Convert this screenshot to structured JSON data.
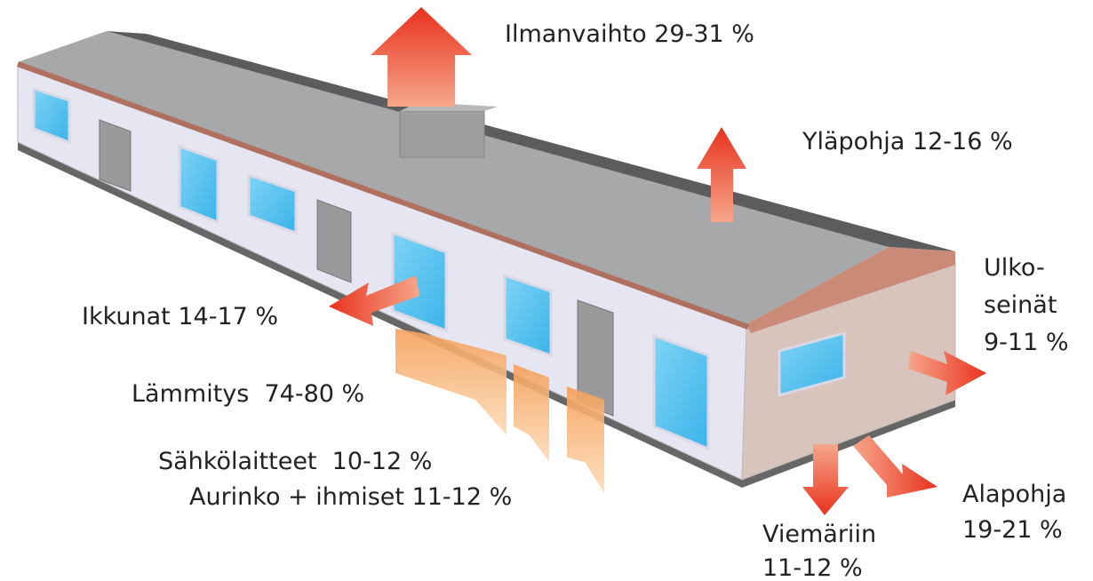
{
  "labels": {
    "ilmanvaihto": "Ilmanvaihto 29-31 %",
    "ylapohja": "Yläpohja 12-16 %",
    "ulkoseinat": [
      "Ulko-",
      "seinät",
      "9-11 %"
    ],
    "ikkunat": "Ikkunat 14-17 %",
    "lammitys": "Lämmitys  74-80 %",
    "sahkolaitteet": "Sähkölaitteet  10-12 %",
    "aurinko": "Aurinko + ihmiset 11-12 %",
    "viemariin": [
      "Viemäriin",
      "11-12 %"
    ],
    "alapohja": [
      "Alapohja",
      "19-21 %"
    ]
  }
}
